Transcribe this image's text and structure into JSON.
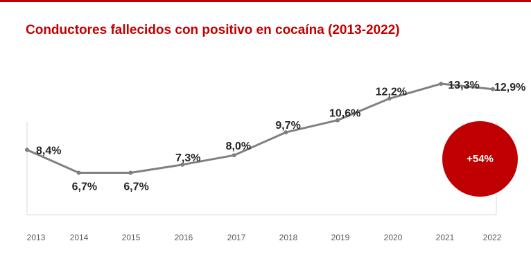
{
  "title": "Conductores fallecidos con positivo en cocaína (2013-2022)",
  "badge": "+54%",
  "colors": {
    "title": "#c00000",
    "line": "#808080",
    "badge": "#c00000",
    "labels": "#262626",
    "axis_text": "#595959"
  },
  "chart_data": {
    "type": "line",
    "title": "Conductores fallecidos con positivo en cocaína (2013-2022)",
    "categories": [
      "2013",
      "2014",
      "2015",
      "2016",
      "2017",
      "2018",
      "2019",
      "2020",
      "2021",
      "2022"
    ],
    "values": [
      8.4,
      6.7,
      6.7,
      7.3,
      8.0,
      9.7,
      10.6,
      12.2,
      13.3,
      12.9
    ],
    "data_labels": [
      "8,4%",
      "6,7%",
      "6,7%",
      "7,3%",
      "8,0%",
      "9,7%",
      "10,6%",
      "12,2%",
      "13,3%",
      "12,9%"
    ],
    "xlabel": "",
    "ylabel": "",
    "unit": "%",
    "grid": false,
    "legend": "none",
    "annotation": "+54%"
  }
}
